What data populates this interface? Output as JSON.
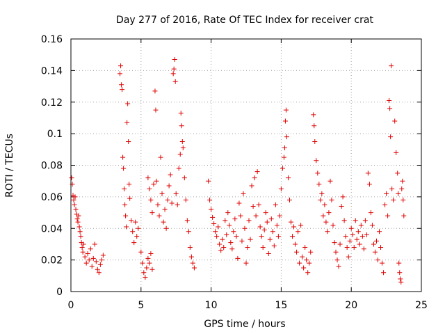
{
  "chart_data": {
    "type": "scatter",
    "title": "Day 277 of 2016, Rate Of TEC Index for receiver crat",
    "xlabel": "GPS time / hours",
    "ylabel": "ROTI / TECUs",
    "xlim": [
      0,
      25
    ],
    "ylim": [
      0,
      0.16
    ],
    "xticks": [
      0,
      5,
      10,
      15,
      20,
      25
    ],
    "xtick_labels": [
      "0",
      "5",
      "10",
      "15",
      "20",
      "25"
    ],
    "yticks": [
      0,
      0.02,
      0.04,
      0.06,
      0.08,
      0.1,
      0.12,
      0.14,
      0.16
    ],
    "ytick_labels": [
      "0",
      "0.02",
      "0.04",
      "0.06",
      "0.08",
      "0.1",
      "0.12",
      "0.14",
      "0.16"
    ],
    "grid": true,
    "marker": "plus",
    "marker_color": "#e00000",
    "series": [
      {
        "name": "ROTI",
        "points": [
          [
            0.05,
            0.072
          ],
          [
            0.1,
            0.068
          ],
          [
            0.15,
            0.061
          ],
          [
            0.2,
            0.058
          ],
          [
            0.25,
            0.055
          ],
          [
            0.3,
            0.06
          ],
          [
            0.35,
            0.052
          ],
          [
            0.4,
            0.049
          ],
          [
            0.45,
            0.046
          ],
          [
            0.5,
            0.044
          ],
          [
            0.55,
            0.048
          ],
          [
            0.6,
            0.041
          ],
          [
            0.65,
            0.038
          ],
          [
            0.7,
            0.035
          ],
          [
            0.75,
            0.031
          ],
          [
            0.8,
            0.028
          ],
          [
            0.85,
            0.025
          ],
          [
            0.9,
            0.03
          ],
          [
            1.0,
            0.022
          ],
          [
            1.1,
            0.018
          ],
          [
            1.2,
            0.024
          ],
          [
            1.3,
            0.02
          ],
          [
            1.4,
            0.027
          ],
          [
            1.5,
            0.016
          ],
          [
            1.6,
            0.021
          ],
          [
            1.7,
            0.03
          ],
          [
            1.8,
            0.019
          ],
          [
            1.9,
            0.014
          ],
          [
            2.0,
            0.012
          ],
          [
            2.1,
            0.017
          ],
          [
            2.2,
            0.02
          ],
          [
            2.3,
            0.023
          ],
          [
            3.5,
            0.138
          ],
          [
            3.55,
            0.143
          ],
          [
            3.6,
            0.131
          ],
          [
            3.65,
            0.128
          ],
          [
            3.7,
            0.085
          ],
          [
            3.75,
            0.078
          ],
          [
            3.8,
            0.065
          ],
          [
            3.85,
            0.055
          ],
          [
            3.9,
            0.048
          ],
          [
            3.95,
            0.041
          ],
          [
            4.0,
            0.107
          ],
          [
            4.05,
            0.119
          ],
          [
            4.1,
            0.095
          ],
          [
            4.15,
            0.068
          ],
          [
            4.2,
            0.059
          ],
          [
            4.3,
            0.045
          ],
          [
            4.4,
            0.038
          ],
          [
            4.5,
            0.031
          ],
          [
            4.6,
            0.044
          ],
          [
            4.7,
            0.035
          ],
          [
            4.8,
            0.04
          ],
          [
            5.0,
            0.025
          ],
          [
            5.1,
            0.018
          ],
          [
            5.2,
            0.012
          ],
          [
            5.3,
            0.009
          ],
          [
            5.4,
            0.015
          ],
          [
            5.5,
            0.021
          ],
          [
            5.6,
            0.018
          ],
          [
            5.7,
            0.024
          ],
          [
            5.8,
            0.014
          ],
          [
            5.5,
            0.072
          ],
          [
            5.6,
            0.065
          ],
          [
            5.7,
            0.058
          ],
          [
            5.8,
            0.05
          ],
          [
            5.9,
            0.068
          ],
          [
            6.0,
            0.127
          ],
          [
            6.05,
            0.115
          ],
          [
            6.1,
            0.07
          ],
          [
            6.2,
            0.055
          ],
          [
            6.3,
            0.048
          ],
          [
            6.4,
            0.085
          ],
          [
            6.5,
            0.062
          ],
          [
            6.6,
            0.044
          ],
          [
            6.7,
            0.052
          ],
          [
            6.8,
            0.04
          ],
          [
            6.9,
            0.058
          ],
          [
            7.0,
            0.067
          ],
          [
            7.1,
            0.074
          ],
          [
            7.2,
            0.056
          ],
          [
            7.3,
            0.138
          ],
          [
            7.35,
            0.141
          ],
          [
            7.4,
            0.147
          ],
          [
            7.45,
            0.133
          ],
          [
            7.5,
            0.062
          ],
          [
            7.6,
            0.055
          ],
          [
            7.7,
            0.078
          ],
          [
            7.8,
            0.087
          ],
          [
            7.85,
            0.113
          ],
          [
            7.9,
            0.105
          ],
          [
            7.95,
            0.095
          ],
          [
            8.0,
            0.091
          ],
          [
            8.1,
            0.072
          ],
          [
            8.2,
            0.058
          ],
          [
            8.3,
            0.045
          ],
          [
            8.4,
            0.038
          ],
          [
            8.5,
            0.028
          ],
          [
            8.6,
            0.022
          ],
          [
            8.7,
            0.018
          ],
          [
            8.8,
            0.015
          ],
          [
            9.8,
            0.07
          ],
          [
            9.9,
            0.058
          ],
          [
            10.0,
            0.052
          ],
          [
            10.1,
            0.047
          ],
          [
            10.2,
            0.043
          ],
          [
            10.3,
            0.038
          ],
          [
            10.4,
            0.035
          ],
          [
            10.5,
            0.041
          ],
          [
            10.6,
            0.03
          ],
          [
            10.7,
            0.026
          ],
          [
            10.8,
            0.033
          ],
          [
            10.9,
            0.028
          ],
          [
            11.0,
            0.045
          ],
          [
            11.1,
            0.036
          ],
          [
            11.2,
            0.05
          ],
          [
            11.3,
            0.042
          ],
          [
            11.4,
            0.031
          ],
          [
            11.5,
            0.027
          ],
          [
            11.6,
            0.038
          ],
          [
            11.7,
            0.046
          ],
          [
            11.8,
            0.035
          ],
          [
            11.9,
            0.021
          ],
          [
            12.0,
            0.056
          ],
          [
            12.1,
            0.048
          ],
          [
            12.2,
            0.032
          ],
          [
            12.3,
            0.062
          ],
          [
            12.4,
            0.04
          ],
          [
            12.5,
            0.018
          ],
          [
            12.6,
            0.028
          ],
          [
            12.7,
            0.045
          ],
          [
            12.8,
            0.033
          ],
          [
            12.9,
            0.067
          ],
          [
            13.0,
            0.054
          ],
          [
            13.1,
            0.072
          ],
          [
            13.2,
            0.048
          ],
          [
            13.3,
            0.076
          ],
          [
            13.4,
            0.055
          ],
          [
            13.5,
            0.041
          ],
          [
            13.6,
            0.035
          ],
          [
            13.7,
            0.028
          ],
          [
            13.8,
            0.039
          ],
          [
            13.9,
            0.05
          ],
          [
            14.0,
            0.044
          ],
          [
            14.1,
            0.024
          ],
          [
            14.2,
            0.033
          ],
          [
            14.3,
            0.046
          ],
          [
            14.4,
            0.038
          ],
          [
            14.5,
            0.029
          ],
          [
            14.6,
            0.055
          ],
          [
            14.7,
            0.042
          ],
          [
            14.8,
            0.035
          ],
          [
            14.9,
            0.048
          ],
          [
            15.0,
            0.065
          ],
          [
            15.1,
            0.078
          ],
          [
            15.2,
            0.085
          ],
          [
            15.25,
            0.091
          ],
          [
            15.3,
            0.108
          ],
          [
            15.35,
            0.115
          ],
          [
            15.4,
            0.098
          ],
          [
            15.5,
            0.072
          ],
          [
            15.6,
            0.058
          ],
          [
            15.7,
            0.044
          ],
          [
            15.8,
            0.035
          ],
          [
            15.9,
            0.041
          ],
          [
            16.0,
            0.03
          ],
          [
            16.1,
            0.025
          ],
          [
            16.2,
            0.038
          ],
          [
            16.3,
            0.018
          ],
          [
            16.4,
            0.042
          ],
          [
            16.5,
            0.022
          ],
          [
            16.6,
            0.015
          ],
          [
            16.7,
            0.028
          ],
          [
            16.8,
            0.02
          ],
          [
            16.9,
            0.012
          ],
          [
            17.0,
            0.018
          ],
          [
            17.1,
            0.025
          ],
          [
            17.3,
            0.112
          ],
          [
            17.35,
            0.105
          ],
          [
            17.4,
            0.095
          ],
          [
            17.5,
            0.083
          ],
          [
            17.6,
            0.075
          ],
          [
            17.7,
            0.068
          ],
          [
            17.8,
            0.058
          ],
          [
            17.9,
            0.062
          ],
          [
            18.0,
            0.048
          ],
          [
            18.1,
            0.055
          ],
          [
            18.2,
            0.044
          ],
          [
            18.3,
            0.038
          ],
          [
            18.4,
            0.05
          ],
          [
            18.5,
            0.07
          ],
          [
            18.6,
            0.058
          ],
          [
            18.7,
            0.042
          ],
          [
            18.8,
            0.031
          ],
          [
            18.9,
            0.025
          ],
          [
            19.0,
            0.02
          ],
          [
            19.1,
            0.016
          ],
          [
            19.2,
            0.03
          ],
          [
            19.3,
            0.054
          ],
          [
            19.4,
            0.06
          ],
          [
            19.5,
            0.045
          ],
          [
            19.6,
            0.035
          ],
          [
            19.7,
            0.028
          ],
          [
            19.8,
            0.022
          ],
          [
            19.9,
            0.032
          ],
          [
            20.0,
            0.04
          ],
          [
            20.1,
            0.036
          ],
          [
            20.2,
            0.028
          ],
          [
            20.3,
            0.045
          ],
          [
            20.4,
            0.033
          ],
          [
            20.5,
            0.038
          ],
          [
            20.6,
            0.03
          ],
          [
            20.7,
            0.042
          ],
          [
            20.8,
            0.035
          ],
          [
            20.9,
            0.027
          ],
          [
            21.0,
            0.045
          ],
          [
            21.1,
            0.036
          ],
          [
            21.2,
            0.075
          ],
          [
            21.3,
            0.068
          ],
          [
            21.4,
            0.05
          ],
          [
            21.5,
            0.042
          ],
          [
            21.6,
            0.03
          ],
          [
            21.7,
            0.025
          ],
          [
            21.8,
            0.032
          ],
          [
            21.9,
            0.02
          ],
          [
            22.0,
            0.038
          ],
          [
            22.1,
            0.028
          ],
          [
            22.2,
            0.018
          ],
          [
            22.3,
            0.012
          ],
          [
            22.4,
            0.055
          ],
          [
            22.5,
            0.062
          ],
          [
            22.6,
            0.048
          ],
          [
            22.7,
            0.121
          ],
          [
            22.75,
            0.116
          ],
          [
            22.8,
            0.098
          ],
          [
            22.85,
            0.143
          ],
          [
            22.9,
            0.065
          ],
          [
            23.0,
            0.058
          ],
          [
            23.1,
            0.108
          ],
          [
            23.2,
            0.088
          ],
          [
            23.3,
            0.075
          ],
          [
            23.35,
            0.062
          ],
          [
            23.4,
            0.018
          ],
          [
            23.45,
            0.012
          ],
          [
            23.5,
            0.008
          ],
          [
            23.55,
            0.006
          ],
          [
            23.6,
            0.065
          ],
          [
            23.65,
            0.07
          ],
          [
            23.7,
            0.058
          ],
          [
            23.75,
            0.048
          ]
        ]
      }
    ]
  }
}
